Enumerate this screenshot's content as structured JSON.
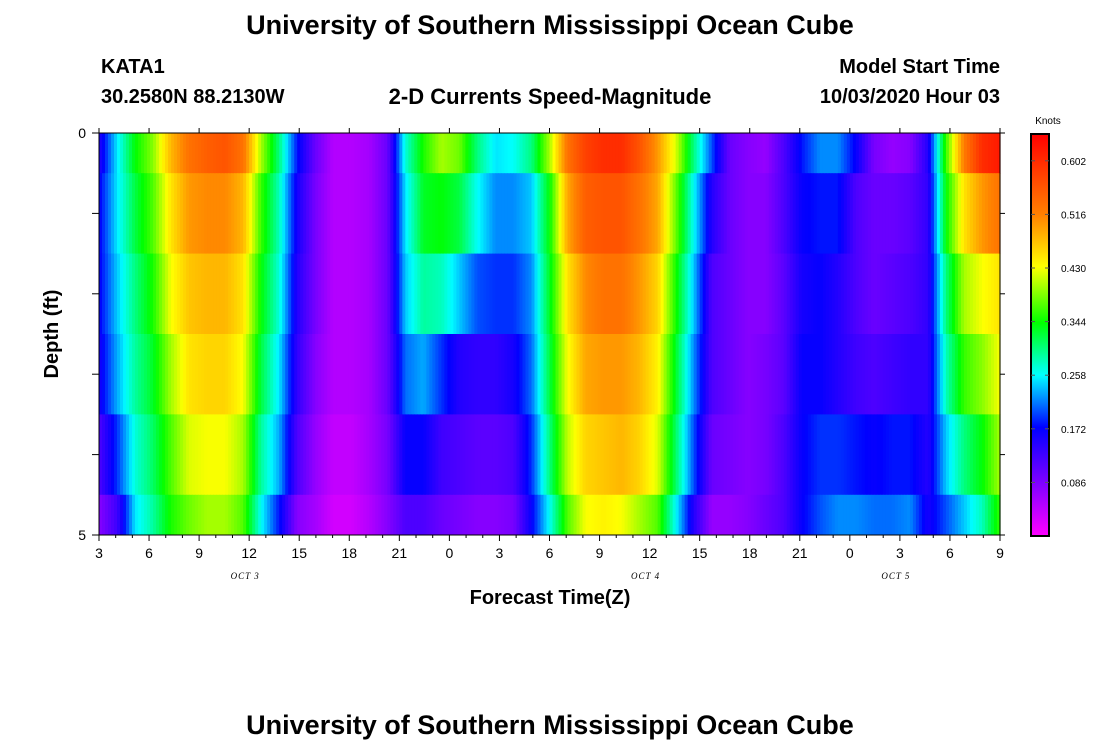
{
  "header": {
    "title": "University of Southern Mississippi Ocean Cube",
    "station": "KATA1",
    "coords": "30.2580N 88.2130W",
    "subtitle": "2-D Currents Speed-Magnitude",
    "start_label": "Model Start Time",
    "start_value": "10/03/2020 Hour 03",
    "footer_title": "University of Southern Mississippi Ocean Cube"
  },
  "chart_data": {
    "type": "heatmap",
    "xlabel": "Forecast Time(Z)",
    "ylabel": "Depth (ft)",
    "x_tick_labels": [
      "3",
      "6",
      "9",
      "12",
      "15",
      "18",
      "21",
      "0",
      "3",
      "6",
      "9",
      "12",
      "15",
      "18",
      "21",
      "0",
      "3",
      "6",
      "9"
    ],
    "date_labels": [
      {
        "text": "OCT 3",
        "at_tick_index": 3
      },
      {
        "text": "OCT 4",
        "at_tick_index": 11
      },
      {
        "text": "OCT 5",
        "at_tick_index": 16
      }
    ],
    "y_tick_labels": [
      "0",
      "5"
    ],
    "ylim": [
      0,
      5
    ],
    "hours_per_column": 1,
    "colorbar": {
      "label": "Knots",
      "range": [
        0.0,
        0.645
      ],
      "tick_values": [
        "0.602",
        "0.516",
        "0.430",
        "0.344",
        "0.258",
        "0.172",
        "0.086"
      ]
    },
    "depth_layers": [
      {
        "depth_range": "0-0.5",
        "values": [
          0.15,
          0.25,
          0.34,
          0.39,
          0.48,
          0.53,
          0.55,
          0.56,
          0.53,
          0.4,
          0.3,
          0.18,
          0.1,
          0.05,
          0.05,
          0.06,
          0.1,
          0.27,
          0.35,
          0.4,
          0.38,
          0.3,
          0.25,
          0.26,
          0.3,
          0.4,
          0.53,
          0.58,
          0.6,
          0.6,
          0.56,
          0.5,
          0.42,
          0.3,
          0.2,
          0.1,
          0.08,
          0.07,
          0.12,
          0.18,
          0.22,
          0.22,
          0.17,
          0.09,
          0.07,
          0.08,
          0.15,
          0.36,
          0.52,
          0.6,
          0.62
        ]
      },
      {
        "depth_range": "0.5-1.5",
        "values": [
          0.17,
          0.25,
          0.32,
          0.37,
          0.45,
          0.5,
          0.51,
          0.51,
          0.48,
          0.36,
          0.28,
          0.16,
          0.09,
          0.05,
          0.05,
          0.06,
          0.1,
          0.25,
          0.33,
          0.34,
          0.32,
          0.26,
          0.22,
          0.22,
          0.24,
          0.34,
          0.49,
          0.55,
          0.56,
          0.56,
          0.53,
          0.49,
          0.38,
          0.26,
          0.15,
          0.1,
          0.08,
          0.08,
          0.12,
          0.17,
          0.18,
          0.18,
          0.12,
          0.1,
          0.1,
          0.11,
          0.14,
          0.34,
          0.45,
          0.5,
          0.53
        ]
      },
      {
        "depth_range": "1.5-2.5",
        "values": [
          0.17,
          0.24,
          0.3,
          0.35,
          0.43,
          0.47,
          0.48,
          0.48,
          0.45,
          0.34,
          0.27,
          0.15,
          0.09,
          0.05,
          0.05,
          0.06,
          0.1,
          0.24,
          0.29,
          0.28,
          0.24,
          0.2,
          0.19,
          0.19,
          0.22,
          0.33,
          0.45,
          0.51,
          0.53,
          0.53,
          0.5,
          0.46,
          0.35,
          0.24,
          0.12,
          0.1,
          0.08,
          0.08,
          0.11,
          0.16,
          0.17,
          0.15,
          0.12,
          0.1,
          0.11,
          0.12,
          0.14,
          0.3,
          0.4,
          0.43,
          0.45
        ]
      },
      {
        "depth_range": "2.5-3.5",
        "values": [
          0.16,
          0.23,
          0.29,
          0.33,
          0.4,
          0.45,
          0.46,
          0.46,
          0.43,
          0.32,
          0.25,
          0.14,
          0.08,
          0.05,
          0.05,
          0.06,
          0.1,
          0.21,
          0.23,
          0.19,
          0.15,
          0.14,
          0.14,
          0.16,
          0.21,
          0.32,
          0.43,
          0.49,
          0.5,
          0.5,
          0.48,
          0.44,
          0.33,
          0.22,
          0.12,
          0.1,
          0.08,
          0.09,
          0.11,
          0.17,
          0.17,
          0.15,
          0.13,
          0.12,
          0.13,
          0.14,
          0.14,
          0.28,
          0.36,
          0.39,
          0.43
        ]
      },
      {
        "depth_range": "3.5-4.5",
        "values": [
          0.12,
          0.19,
          0.27,
          0.31,
          0.37,
          0.42,
          0.43,
          0.43,
          0.4,
          0.29,
          0.23,
          0.12,
          0.07,
          0.04,
          0.04,
          0.06,
          0.09,
          0.17,
          0.17,
          0.13,
          0.12,
          0.11,
          0.11,
          0.12,
          0.19,
          0.3,
          0.41,
          0.46,
          0.47,
          0.48,
          0.46,
          0.42,
          0.31,
          0.2,
          0.1,
          0.09,
          0.08,
          0.09,
          0.12,
          0.17,
          0.19,
          0.19,
          0.18,
          0.17,
          0.18,
          0.18,
          0.15,
          0.24,
          0.3,
          0.34,
          0.4
        ]
      },
      {
        "depth_range": "4.5-5",
        "values": [
          0.08,
          0.13,
          0.25,
          0.29,
          0.35,
          0.38,
          0.4,
          0.4,
          0.37,
          0.26,
          0.18,
          0.08,
          0.06,
          0.03,
          0.03,
          0.05,
          0.08,
          0.12,
          0.12,
          0.1,
          0.09,
          0.08,
          0.08,
          0.09,
          0.17,
          0.26,
          0.37,
          0.43,
          0.44,
          0.43,
          0.4,
          0.37,
          0.26,
          0.15,
          0.07,
          0.07,
          0.08,
          0.1,
          0.12,
          0.17,
          0.2,
          0.22,
          0.22,
          0.21,
          0.21,
          0.22,
          0.16,
          0.2,
          0.24,
          0.28,
          0.36
        ]
      }
    ]
  }
}
